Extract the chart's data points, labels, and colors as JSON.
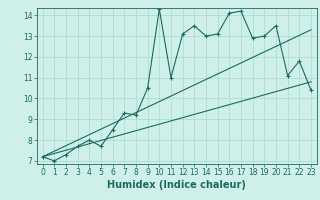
{
  "title": "",
  "xlabel": "Humidex (Indice chaleur)",
  "xlim": [
    -0.5,
    23.5
  ],
  "ylim": [
    6.85,
    14.35
  ],
  "xticks": [
    0,
    1,
    2,
    3,
    4,
    5,
    6,
    7,
    8,
    9,
    10,
    11,
    12,
    13,
    14,
    15,
    16,
    17,
    18,
    19,
    20,
    21,
    22,
    23
  ],
  "yticks": [
    7,
    8,
    9,
    10,
    11,
    12,
    13,
    14
  ],
  "bg_color": "#cff0ea",
  "line_color": "#1a6b5a",
  "main_x": [
    0,
    1,
    2,
    3,
    4,
    5,
    6,
    7,
    8,
    9,
    10,
    11,
    12,
    13,
    14,
    15,
    16,
    17,
    18,
    19,
    20,
    21,
    22,
    23
  ],
  "main_y": [
    7.2,
    7.0,
    7.3,
    7.7,
    8.0,
    7.7,
    8.5,
    9.3,
    9.2,
    10.5,
    14.3,
    11.0,
    13.1,
    13.5,
    13.0,
    13.1,
    14.1,
    14.2,
    12.9,
    13.0,
    13.5,
    11.1,
    11.8,
    10.4
  ],
  "line1_x": [
    0,
    23
  ],
  "line1_y": [
    7.2,
    10.8
  ],
  "line2_x": [
    0,
    23
  ],
  "line2_y": [
    7.2,
    13.3
  ],
  "grid_color": "#a8d8d0",
  "tick_fontsize": 5.5,
  "label_fontsize": 7.0
}
